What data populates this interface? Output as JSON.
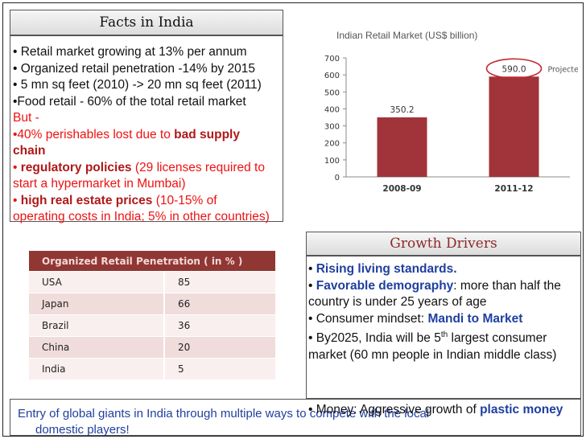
{
  "facts": {
    "title": "Facts in India",
    "bullets": [
      "• Retail market growing at 13% per annum",
      "• Organized retail penetration -14% by 2015",
      "• 5 mn sq feet (2010) -> 20 mn sq feet (2011)",
      "•Food retail - 60% of the total retail market"
    ],
    "but_label": "But -",
    "issue1_pre": "•40% perishables lost due to ",
    "issue1_bold": "bad supply chain",
    "issue2_bullet": "• ",
    "issue2_bold": "regulatory policies",
    "issue2_rest": " (29 licenses required to start a hypermarket in Mumbai)",
    "issue3_bullet": "• ",
    "issue3_bold": "high real estate prices",
    "issue3_rest": " (10-15% of operating costs in India; 5% in other countries)"
  },
  "table": {
    "header": "Organized Retail Penetration ( in % )",
    "rows": [
      {
        "country": "USA",
        "value": "85"
      },
      {
        "country": "Japan",
        "value": "66"
      },
      {
        "country": "Brazil",
        "value": "36"
      },
      {
        "country": "China",
        "value": "20"
      },
      {
        "country": "India",
        "value": "5"
      }
    ]
  },
  "chart_data": {
    "type": "bar",
    "title": "Indian Retail Market (US$ billion)",
    "categories": [
      "2008-09",
      "2011-12"
    ],
    "values": [
      350.2,
      590.0
    ],
    "value_labels": [
      "350.2",
      "590.0"
    ],
    "ylim": [
      0,
      700
    ],
    "yticks": [
      "0",
      "100",
      "200",
      "300",
      "400",
      "500",
      "600",
      "700"
    ],
    "annotation": "Projected",
    "bar_color": "#a1333a",
    "grid": false
  },
  "growth": {
    "title": "Growth Drivers",
    "l1_bullet": "• ",
    "l1_bold": "Rising living standards.",
    "l2_bullet": "• ",
    "l2_bold": "Favorable demography",
    "l2_rest": ": more than half the country is under 25 years of age",
    "l3_pre": "• Consumer mindset: ",
    "l3_bold": "Mandi to Market",
    "l4_pre": "• By2025, India will be 5",
    "l4_sup": "th",
    "l4_rest": " largest consumer market (60 mn people in Indian middle class)",
    "l5_pre": "• Money: Aggressive growth of ",
    "l5_bold": "plastic money"
  },
  "bottom": {
    "line1": "Entry of global giants in India through multiple ways to compete with the local",
    "line2": "domestic players!"
  }
}
